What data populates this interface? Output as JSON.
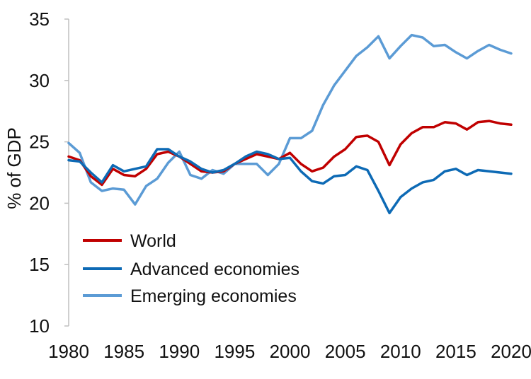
{
  "chart_data": {
    "type": "line",
    "title": "",
    "xlabel": "",
    "ylabel": "% of GDP",
    "xlim": [
      1980,
      2020
    ],
    "ylim": [
      10,
      35
    ],
    "x_ticks": [
      "1980",
      "1985",
      "1990",
      "1995",
      "2000",
      "2005",
      "2010",
      "2015",
      "2020"
    ],
    "y_ticks": [
      "10",
      "15",
      "20",
      "25",
      "30",
      "35"
    ],
    "grid": false,
    "legend_position": "lower-left",
    "x": [
      1980,
      1981,
      1982,
      1983,
      1984,
      1985,
      1986,
      1987,
      1988,
      1989,
      1990,
      1991,
      1992,
      1993,
      1994,
      1995,
      1996,
      1997,
      1998,
      1999,
      2000,
      2001,
      2002,
      2003,
      2004,
      2005,
      2006,
      2007,
      2008,
      2009,
      2010,
      2011,
      2012,
      2013,
      2014,
      2015,
      2016,
      2017,
      2018,
      2019,
      2020
    ],
    "series": [
      {
        "name": "World",
        "color": "#c00000",
        "values": [
          23.8,
          23.5,
          22.2,
          21.5,
          22.8,
          22.3,
          22.2,
          22.8,
          24.0,
          24.2,
          23.8,
          23.2,
          22.6,
          22.5,
          22.6,
          23.2,
          23.6,
          24.0,
          23.8,
          23.6,
          24.1,
          23.2,
          22.6,
          22.9,
          23.8,
          24.4,
          25.4,
          25.5,
          25.0,
          23.1,
          24.8,
          25.7,
          26.2,
          26.2,
          26.6,
          26.5,
          26.0,
          26.6,
          26.7,
          26.5,
          26.4
        ]
      },
      {
        "name": "Advanced economies",
        "color": "#0d6ab5",
        "values": [
          23.5,
          23.4,
          22.5,
          21.7,
          23.1,
          22.6,
          22.8,
          23.0,
          24.4,
          24.4,
          23.8,
          23.4,
          22.8,
          22.5,
          22.7,
          23.2,
          23.8,
          24.2,
          24.0,
          23.6,
          23.7,
          22.6,
          21.8,
          21.6,
          22.2,
          22.3,
          23.0,
          22.7,
          21.0,
          19.2,
          20.5,
          21.2,
          21.7,
          21.9,
          22.6,
          22.8,
          22.3,
          22.7,
          22.6,
          22.5,
          22.4
        ]
      },
      {
        "name": "Emerging economies",
        "color": "#5b9bd5",
        "values": [
          24.9,
          24.1,
          21.7,
          21.0,
          21.2,
          21.1,
          19.9,
          21.4,
          22.0,
          23.3,
          24.2,
          22.3,
          22.0,
          22.7,
          22.4,
          23.2,
          23.2,
          23.2,
          22.3,
          23.2,
          25.3,
          25.3,
          25.9,
          28.0,
          29.6,
          30.8,
          32.0,
          32.7,
          33.6,
          31.8,
          32.8,
          33.7,
          33.5,
          32.8,
          32.9,
          32.3,
          31.8,
          32.4,
          32.9,
          32.5,
          32.2
        ]
      }
    ]
  }
}
